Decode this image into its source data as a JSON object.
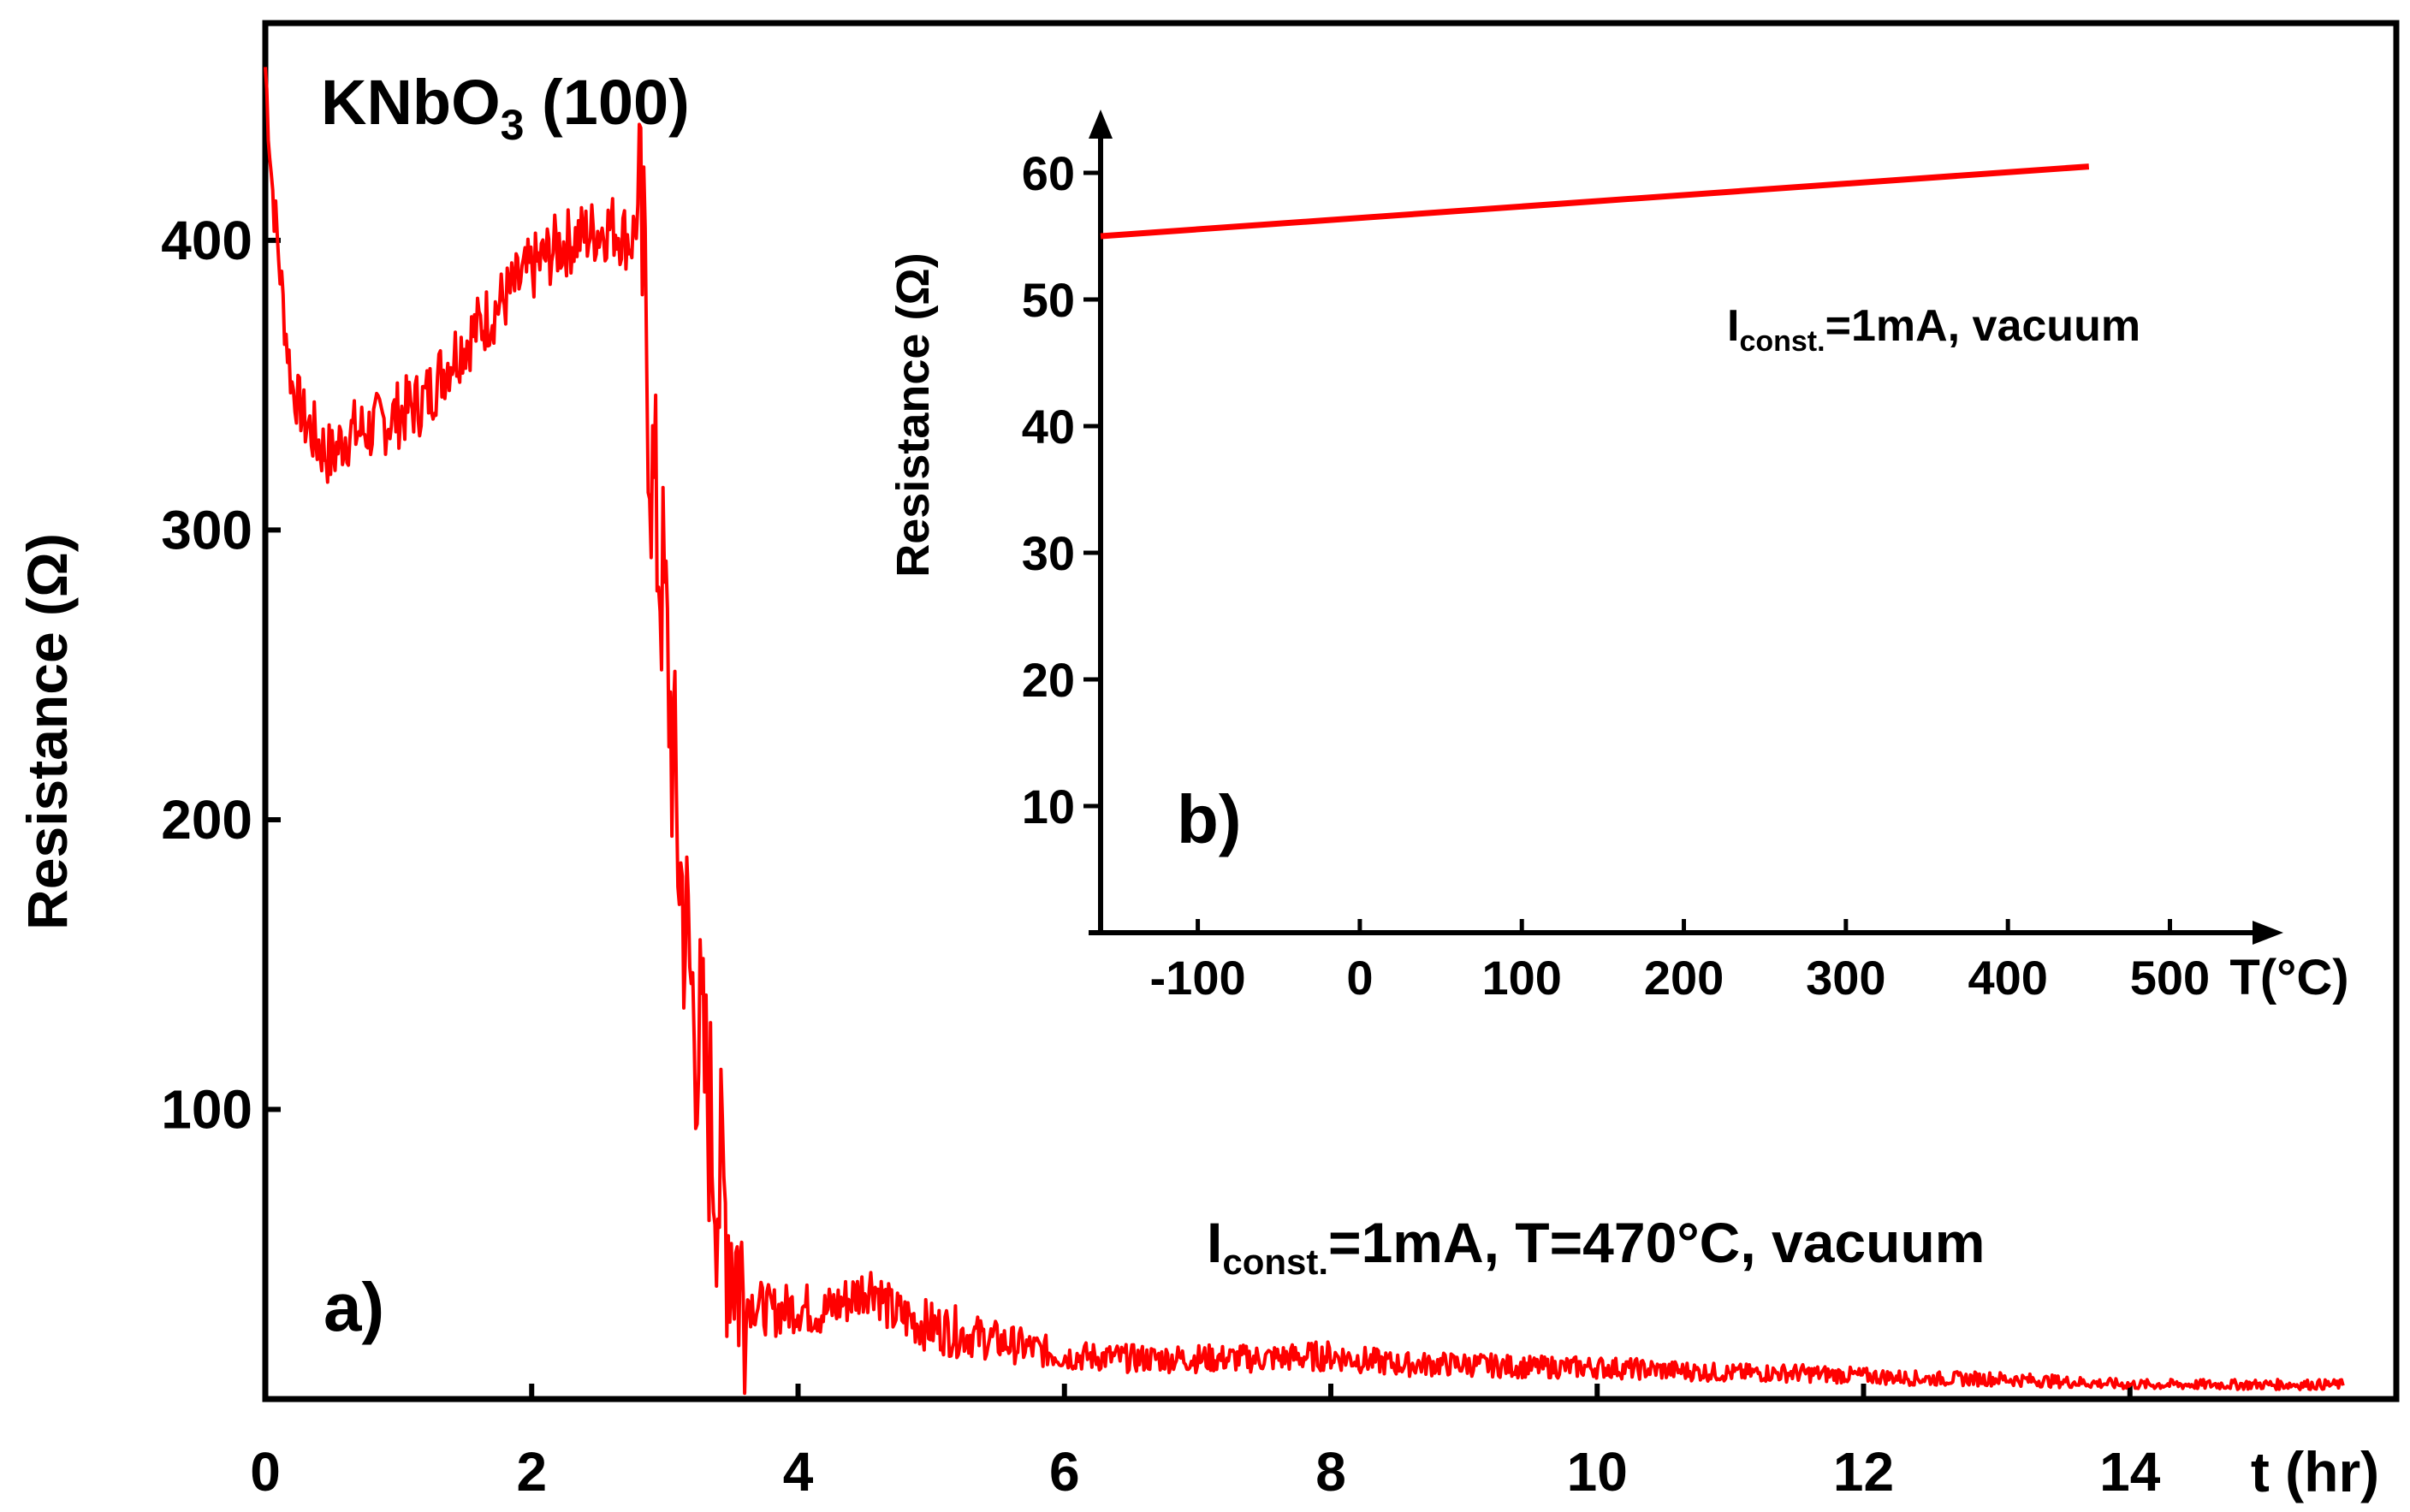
{
  "chart_data": [
    {
      "panel": "a)",
      "type": "line",
      "title": "KNbO",
      "title_subscript": "3",
      "title_suffix": " (100)",
      "xlabel": "t (hr)",
      "ylabel": "Resistance (Ω)",
      "xlim": [
        0,
        16
      ],
      "ylim": [
        0,
        475
      ],
      "x_ticks": [
        0,
        2,
        4,
        6,
        8,
        10,
        12,
        14
      ],
      "x_tick_labels": [
        "0",
        "2",
        "4",
        "6",
        "8",
        "10",
        "12",
        "14"
      ],
      "y_ticks": [
        100,
        200,
        300,
        400
      ],
      "y_tick_labels": [
        "100",
        "200",
        "300",
        "400"
      ],
      "annotation": {
        "prefix": "I",
        "subscript": "const.",
        "suffix": "=1mA, T=470°C, vacuum"
      },
      "color": "#ff0000",
      "series": [
        {
          "name": "Resistance",
          "x": [
            0,
            0.05,
            0.1,
            0.15,
            0.2,
            0.3,
            0.4,
            0.5,
            0.6,
            0.8,
            1.0,
            1.2,
            1.4,
            1.6,
            1.8,
            2.0,
            2.2,
            2.4,
            2.6,
            2.75,
            2.8,
            2.85,
            2.9,
            3.0,
            3.1,
            3.2,
            3.3,
            3.4,
            3.5,
            3.6,
            3.8,
            4.0,
            4.2,
            4.4,
            4.56,
            4.7,
            5.0,
            5.5,
            6.0,
            6.5,
            7.0,
            7.5,
            8.0,
            8.5,
            9.0,
            9.5,
            10.0,
            10.5,
            11.0,
            11.5,
            12.0,
            12.5,
            13.0,
            13.5,
            14.0,
            14.5,
            15.0,
            15.5,
            15.6
          ],
          "y": [
            460,
            420,
            395,
            370,
            350,
            338,
            330,
            325,
            333,
            335,
            340,
            345,
            360,
            370,
            380,
            390,
            398,
            402,
            405,
            400,
            410,
            380,
            320,
            270,
            190,
            140,
            110,
            75,
            55,
            35,
            30,
            32,
            30,
            35,
            40,
            30,
            25,
            20,
            15,
            14,
            14,
            14,
            15,
            12,
            12,
            11,
            11,
            10,
            9,
            9,
            8,
            7,
            7,
            6,
            5,
            5,
            5,
            5,
            5
          ]
        }
      ]
    },
    {
      "panel": "b)",
      "type": "line",
      "xlabel": "T(°C)",
      "ylabel": "Resistance (Ω)",
      "xlim": [
        -160,
        570
      ],
      "ylim": [
        0,
        65
      ],
      "x_ticks": [
        -100,
        0,
        100,
        200,
        300,
        400,
        500
      ],
      "x_tick_labels": [
        "-100",
        "0",
        "100",
        "200",
        "300",
        "400",
        "500"
      ],
      "y_ticks": [
        10,
        20,
        30,
        40,
        50,
        60
      ],
      "y_tick_labels": [
        "10",
        "20",
        "30",
        "40",
        "50",
        "60"
      ],
      "annotation": {
        "prefix": "I",
        "subscript": "const.",
        "suffix": "=1mA, vacuum"
      },
      "color": "#ff0000",
      "series": [
        {
          "name": "Resistance",
          "x": [
            -160,
            450
          ],
          "y": [
            55.0,
            60.5
          ]
        }
      ]
    }
  ]
}
